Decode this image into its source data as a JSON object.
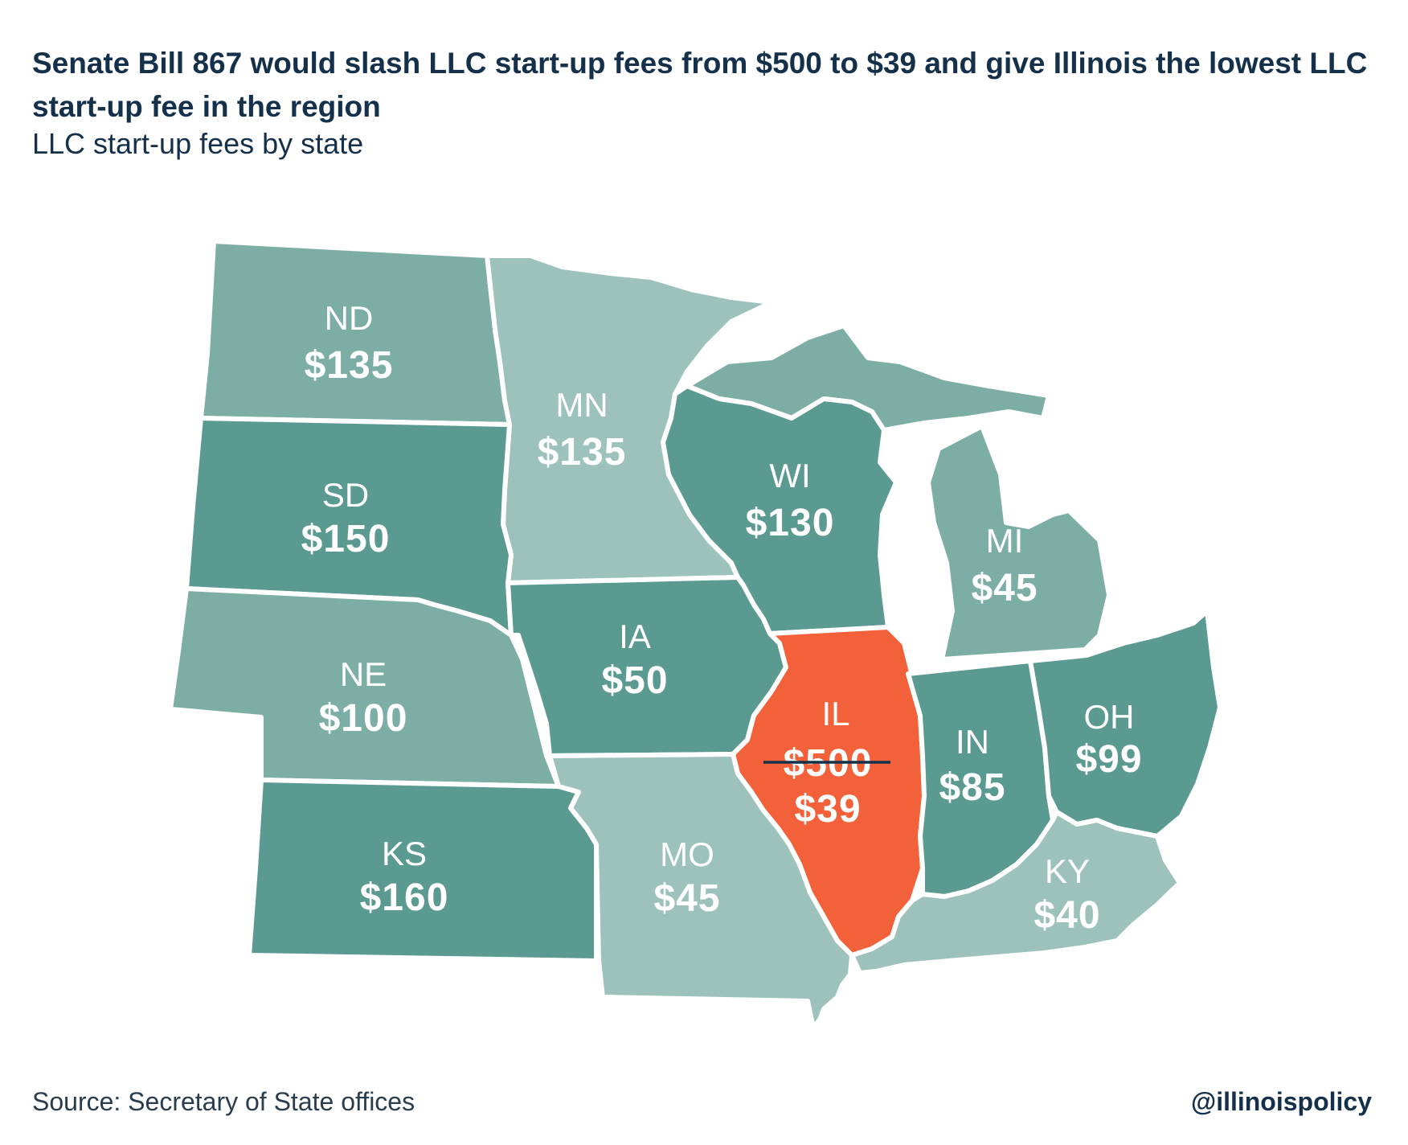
{
  "header": {
    "title": "Senate Bill 867 would slash LLC start-up fees from $500 to $39 and give Illinois the lowest LLC start-up fee in the region",
    "subtitle": "LLC start-up fees by state"
  },
  "colors": {
    "text": "#14304a",
    "highlight": "#f2613a",
    "shade_dark": "#5a9a91",
    "shade_mid": "#7daea6",
    "shade_light": "#9dc2bc"
  },
  "states": {
    "ND": {
      "abbr": "ND",
      "fee": "$135"
    },
    "MN": {
      "abbr": "MN",
      "fee": "$135"
    },
    "SD": {
      "abbr": "SD",
      "fee": "$150"
    },
    "WI": {
      "abbr": "WI",
      "fee": "$130"
    },
    "MI": {
      "abbr": "MI",
      "fee": "$45"
    },
    "NE": {
      "abbr": "NE",
      "fee": "$100"
    },
    "IA": {
      "abbr": "IA",
      "fee": "$50"
    },
    "IL": {
      "abbr": "IL",
      "old_fee": "$500",
      "fee": "$39"
    },
    "IN": {
      "abbr": "IN",
      "fee": "$85"
    },
    "OH": {
      "abbr": "OH",
      "fee": "$99"
    },
    "KS": {
      "abbr": "KS",
      "fee": "$160"
    },
    "MO": {
      "abbr": "MO",
      "fee": "$45"
    },
    "KY": {
      "abbr": "KY",
      "fee": "$40"
    }
  },
  "footer": {
    "source": "Source: Secretary of State offices",
    "handle": "@illinoispolicy"
  }
}
